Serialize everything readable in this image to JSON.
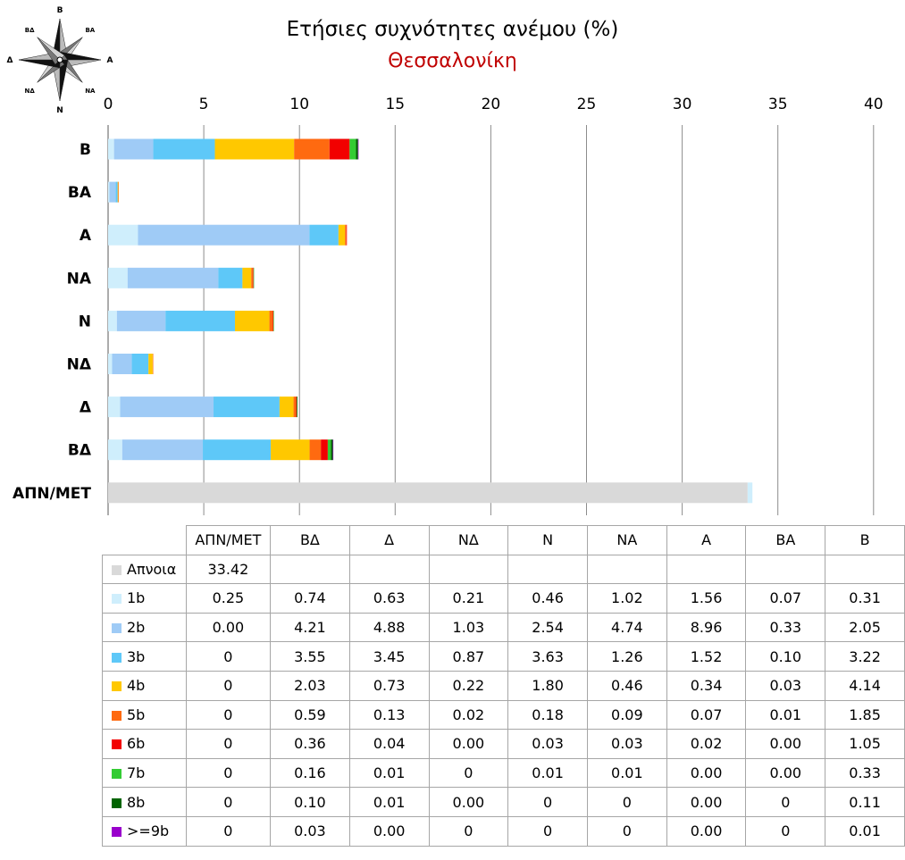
{
  "chart_data": {
    "type": "bar",
    "orientation": "horizontal",
    "stacked": true,
    "title": "Ετήσιες συχνότητες ανέμου (%)",
    "subtitle": "Θεσσαλονίκη",
    "xlim": [
      0,
      40
    ],
    "x_ticks": [
      0,
      5,
      10,
      15,
      20,
      25,
      30,
      35,
      40
    ],
    "grid": true,
    "categories": [
      "ΑΠΝ/ΜΕΤ",
      "ΒΔ",
      "Δ",
      "ΝΔ",
      "Ν",
      "ΝΑ",
      "Α",
      "ΒΑ",
      "Β"
    ],
    "series": [
      {
        "name": "Απνοια",
        "color": "#d9d9d9",
        "display": [
          "33.42",
          "",
          "",
          "",
          "",
          "",
          "",
          "",
          ""
        ],
        "values": [
          33.42,
          0,
          0,
          0,
          0,
          0,
          0,
          0,
          0
        ]
      },
      {
        "name": "1b",
        "color": "#cfeefc",
        "display": [
          "0.25",
          "0.74",
          "0.63",
          "0.21",
          "0.46",
          "1.02",
          "1.56",
          "0.07",
          "0.31"
        ],
        "values": [
          0.25,
          0.74,
          0.63,
          0.21,
          0.46,
          1.02,
          1.56,
          0.07,
          0.31
        ]
      },
      {
        "name": "2b",
        "color": "#9fcbf6",
        "display": [
          "0.00",
          "4.21",
          "4.88",
          "1.03",
          "2.54",
          "4.74",
          "8.96",
          "0.33",
          "2.05"
        ],
        "values": [
          0,
          4.21,
          4.88,
          1.03,
          2.54,
          4.74,
          8.96,
          0.33,
          2.05
        ]
      },
      {
        "name": "3b",
        "color": "#5ec8f8",
        "display": [
          "0",
          "3.55",
          "3.45",
          "0.87",
          "3.63",
          "1.26",
          "1.52",
          "0.10",
          "3.22"
        ],
        "values": [
          0,
          3.55,
          3.45,
          0.87,
          3.63,
          1.26,
          1.52,
          0.1,
          3.22
        ]
      },
      {
        "name": "4b",
        "color": "#ffc800",
        "display": [
          "0",
          "2.03",
          "0.73",
          "0.22",
          "1.80",
          "0.46",
          "0.34",
          "0.03",
          "4.14"
        ],
        "values": [
          0,
          2.03,
          0.73,
          0.22,
          1.8,
          0.46,
          0.34,
          0.03,
          4.14
        ]
      },
      {
        "name": "5b",
        "color": "#ff6a10",
        "display": [
          "0",
          "0.59",
          "0.13",
          "0.02",
          "0.18",
          "0.09",
          "0.07",
          "0.01",
          "1.85"
        ],
        "values": [
          0,
          0.59,
          0.13,
          0.02,
          0.18,
          0.09,
          0.07,
          0.01,
          1.85
        ]
      },
      {
        "name": "6b",
        "color": "#f20000",
        "display": [
          "0",
          "0.36",
          "0.04",
          "0.00",
          "0.03",
          "0.03",
          "0.02",
          "0.00",
          "1.05"
        ],
        "values": [
          0,
          0.36,
          0.04,
          0,
          0.03,
          0.03,
          0.02,
          0,
          1.05
        ]
      },
      {
        "name": "7b",
        "color": "#33cc33",
        "display": [
          "0",
          "0.16",
          "0.01",
          "0",
          "0.01",
          "0.01",
          "0.00",
          "0.00",
          "0.33"
        ],
        "values": [
          0,
          0.16,
          0.01,
          0,
          0.01,
          0.01,
          0,
          0,
          0.33
        ]
      },
      {
        "name": "8b",
        "color": "#006400",
        "display": [
          "0",
          "0.10",
          "0.01",
          "0.00",
          "0",
          "0",
          "0.00",
          "0",
          "0.11"
        ],
        "values": [
          0,
          0.1,
          0.01,
          0,
          0,
          0,
          0,
          0,
          0.11
        ]
      },
      {
        "name": ">=9b",
        "color": "#9900cc",
        "display": [
          "0",
          "0.03",
          "0.00",
          "0",
          "0",
          "0",
          "0.00",
          "0",
          "0.01"
        ],
        "values": [
          0,
          0.03,
          0,
          0,
          0,
          0,
          0,
          0,
          0.01
        ]
      }
    ]
  },
  "compass": {
    "icon": "compass-rose-icon",
    "labels": {
      "n": "Β",
      "ne": "ΒΑ",
      "e": "Α",
      "se": "ΝΑ",
      "s": "Ν",
      "sw": "ΝΔ",
      "w": "Δ",
      "nw": "ΒΔ"
    }
  }
}
